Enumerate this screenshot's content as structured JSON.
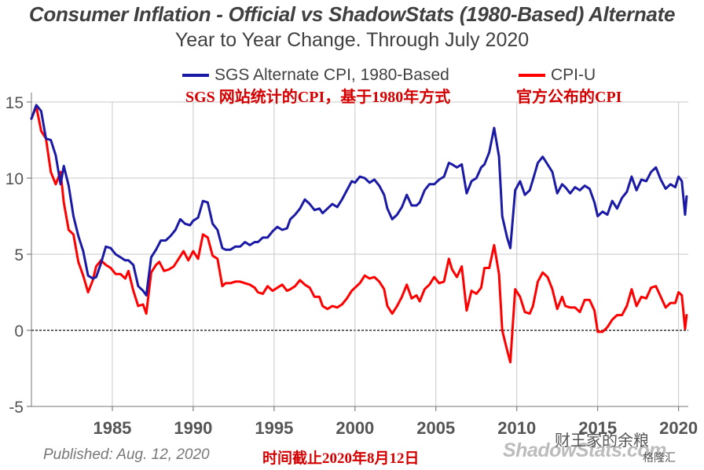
{
  "chart_data": {
    "type": "line",
    "title": "Consumer Inflation - Official vs ShadowStats (1980-Based) Alternate",
    "subtitle": "Year to Year Change. Through July 2020",
    "xlim": [
      1980,
      2020.6
    ],
    "ylim": [
      -5,
      15
    ],
    "y_ticks": [
      -5,
      0,
      5,
      10,
      15
    ],
    "y_tick_labels": [
      "-5",
      "0",
      "5",
      "10",
      "15"
    ],
    "x_ticks": [
      1985,
      1990,
      1995,
      2000,
      2005,
      2010,
      2015,
      2020
    ],
    "x_tick_labels": [
      "1985",
      "1990",
      "1995",
      "2000",
      "2005",
      "2010",
      "2015",
      "2020"
    ],
    "grid": true,
    "legend_position": "top",
    "series": [
      {
        "name": "SGS Alternate CPI, 1980-Based",
        "color": "#1a1aa6",
        "points": [
          [
            1980.0,
            13.9
          ],
          [
            1980.3,
            14.8
          ],
          [
            1980.6,
            14.4
          ],
          [
            1980.9,
            12.6
          ],
          [
            1981.2,
            12.5
          ],
          [
            1981.5,
            11.5
          ],
          [
            1981.8,
            9.6
          ],
          [
            1982.0,
            10.8
          ],
          [
            1982.3,
            9.5
          ],
          [
            1982.6,
            7.5
          ],
          [
            1982.9,
            6.2
          ],
          [
            1983.2,
            5.2
          ],
          [
            1983.5,
            3.6
          ],
          [
            1983.8,
            3.4
          ],
          [
            1984.0,
            3.5
          ],
          [
            1984.3,
            4.4
          ],
          [
            1984.6,
            5.5
          ],
          [
            1984.9,
            5.4
          ],
          [
            1985.2,
            5.0
          ],
          [
            1985.5,
            4.8
          ],
          [
            1985.8,
            4.6
          ],
          [
            1986.0,
            4.6
          ],
          [
            1986.3,
            4.3
          ],
          [
            1986.6,
            2.9
          ],
          [
            1986.9,
            2.6
          ],
          [
            1987.1,
            2.3
          ],
          [
            1987.4,
            4.8
          ],
          [
            1987.7,
            5.3
          ],
          [
            1988.0,
            5.9
          ],
          [
            1988.3,
            5.9
          ],
          [
            1988.6,
            6.2
          ],
          [
            1988.9,
            6.6
          ],
          [
            1989.2,
            7.3
          ],
          [
            1989.5,
            7.0
          ],
          [
            1989.8,
            6.9
          ],
          [
            1990.0,
            7.2
          ],
          [
            1990.3,
            7.4
          ],
          [
            1990.6,
            8.5
          ],
          [
            1990.9,
            8.4
          ],
          [
            1991.2,
            7.0
          ],
          [
            1991.5,
            6.6
          ],
          [
            1991.8,
            5.4
          ],
          [
            1992.0,
            5.3
          ],
          [
            1992.3,
            5.3
          ],
          [
            1992.6,
            5.5
          ],
          [
            1992.9,
            5.5
          ],
          [
            1993.2,
            5.8
          ],
          [
            1993.5,
            5.6
          ],
          [
            1993.8,
            5.8
          ],
          [
            1994.0,
            5.8
          ],
          [
            1994.3,
            6.1
          ],
          [
            1994.6,
            6.1
          ],
          [
            1994.9,
            6.5
          ],
          [
            1995.2,
            6.8
          ],
          [
            1995.5,
            6.6
          ],
          [
            1995.8,
            6.7
          ],
          [
            1996.0,
            7.3
          ],
          [
            1996.3,
            7.6
          ],
          [
            1996.6,
            8.0
          ],
          [
            1996.9,
            8.6
          ],
          [
            1997.2,
            8.3
          ],
          [
            1997.5,
            7.9
          ],
          [
            1997.8,
            8.0
          ],
          [
            1998.0,
            7.7
          ],
          [
            1998.3,
            8.0
          ],
          [
            1998.6,
            8.3
          ],
          [
            1998.9,
            8.1
          ],
          [
            1999.2,
            8.6
          ],
          [
            1999.5,
            9.2
          ],
          [
            1999.8,
            9.8
          ],
          [
            2000.0,
            9.7
          ],
          [
            2000.3,
            10.1
          ],
          [
            2000.6,
            10.0
          ],
          [
            2000.9,
            9.7
          ],
          [
            2001.2,
            9.9
          ],
          [
            2001.5,
            9.5
          ],
          [
            2001.8,
            8.9
          ],
          [
            2002.0,
            8.0
          ],
          [
            2002.3,
            7.3
          ],
          [
            2002.6,
            7.6
          ],
          [
            2002.9,
            8.1
          ],
          [
            2003.2,
            8.9
          ],
          [
            2003.5,
            8.2
          ],
          [
            2003.8,
            8.2
          ],
          [
            2004.0,
            8.4
          ],
          [
            2004.3,
            9.2
          ],
          [
            2004.6,
            9.6
          ],
          [
            2004.9,
            9.6
          ],
          [
            2005.2,
            9.9
          ],
          [
            2005.5,
            10.1
          ],
          [
            2005.8,
            11.0
          ],
          [
            2006.0,
            10.9
          ],
          [
            2006.3,
            10.7
          ],
          [
            2006.6,
            10.9
          ],
          [
            2006.9,
            9.0
          ],
          [
            2007.2,
            9.8
          ],
          [
            2007.5,
            10.0
          ],
          [
            2007.8,
            10.7
          ],
          [
            2008.0,
            10.9
          ],
          [
            2008.3,
            11.7
          ],
          [
            2008.6,
            13.3
          ],
          [
            2008.9,
            11.4
          ],
          [
            2009.1,
            7.5
          ],
          [
            2009.4,
            6.1
          ],
          [
            2009.6,
            5.4
          ],
          [
            2009.9,
            9.2
          ],
          [
            2010.2,
            9.8
          ],
          [
            2010.5,
            8.9
          ],
          [
            2010.8,
            9.2
          ],
          [
            2011.0,
            9.9
          ],
          [
            2011.3,
            11.0
          ],
          [
            2011.6,
            11.4
          ],
          [
            2011.9,
            10.9
          ],
          [
            2012.2,
            10.4
          ],
          [
            2012.5,
            9.0
          ],
          [
            2012.8,
            9.6
          ],
          [
            2013.0,
            9.4
          ],
          [
            2013.3,
            9.0
          ],
          [
            2013.6,
            9.4
          ],
          [
            2013.9,
            9.2
          ],
          [
            2014.2,
            9.5
          ],
          [
            2014.5,
            9.3
          ],
          [
            2014.8,
            8.4
          ],
          [
            2015.0,
            7.5
          ],
          [
            2015.3,
            7.8
          ],
          [
            2015.6,
            7.6
          ],
          [
            2015.9,
            8.5
          ],
          [
            2016.2,
            8.0
          ],
          [
            2016.5,
            8.7
          ],
          [
            2016.8,
            9.1
          ],
          [
            2017.1,
            10.1
          ],
          [
            2017.4,
            9.2
          ],
          [
            2017.7,
            9.9
          ],
          [
            2018.0,
            9.8
          ],
          [
            2018.3,
            10.4
          ],
          [
            2018.6,
            10.7
          ],
          [
            2018.9,
            9.9
          ],
          [
            2019.2,
            9.3
          ],
          [
            2019.5,
            9.6
          ],
          [
            2019.8,
            9.4
          ],
          [
            2020.0,
            10.1
          ],
          [
            2020.2,
            9.8
          ],
          [
            2020.4,
            7.6
          ],
          [
            2020.5,
            8.8
          ]
        ]
      },
      {
        "name": "CPI-U",
        "color": "#ff0000",
        "points": [
          [
            1980.0,
            13.9
          ],
          [
            1980.3,
            14.7
          ],
          [
            1980.6,
            13.1
          ],
          [
            1980.9,
            12.6
          ],
          [
            1981.2,
            10.4
          ],
          [
            1981.5,
            9.6
          ],
          [
            1981.8,
            10.4
          ],
          [
            1982.0,
            8.4
          ],
          [
            1982.3,
            6.6
          ],
          [
            1982.6,
            6.3
          ],
          [
            1982.9,
            4.5
          ],
          [
            1983.2,
            3.6
          ],
          [
            1983.5,
            2.5
          ],
          [
            1983.8,
            3.3
          ],
          [
            1984.0,
            4.2
          ],
          [
            1984.3,
            4.6
          ],
          [
            1984.6,
            4.3
          ],
          [
            1984.9,
            4.1
          ],
          [
            1985.2,
            3.7
          ],
          [
            1985.5,
            3.7
          ],
          [
            1985.8,
            3.4
          ],
          [
            1986.0,
            3.9
          ],
          [
            1986.3,
            2.6
          ],
          [
            1986.6,
            1.6
          ],
          [
            1986.9,
            1.7
          ],
          [
            1987.1,
            1.1
          ],
          [
            1987.4,
            3.8
          ],
          [
            1987.7,
            4.3
          ],
          [
            1987.9,
            4.5
          ],
          [
            1988.2,
            3.9
          ],
          [
            1988.5,
            4.0
          ],
          [
            1988.8,
            4.2
          ],
          [
            1989.1,
            4.7
          ],
          [
            1989.4,
            5.2
          ],
          [
            1989.7,
            4.6
          ],
          [
            1990.0,
            5.2
          ],
          [
            1990.3,
            4.7
          ],
          [
            1990.6,
            6.3
          ],
          [
            1990.9,
            6.1
          ],
          [
            1991.2,
            4.9
          ],
          [
            1991.5,
            4.7
          ],
          [
            1991.8,
            2.9
          ],
          [
            1992.0,
            3.1
          ],
          [
            1992.3,
            3.1
          ],
          [
            1992.6,
            3.2
          ],
          [
            1992.9,
            3.2
          ],
          [
            1993.2,
            3.1
          ],
          [
            1993.5,
            3.0
          ],
          [
            1993.8,
            2.8
          ],
          [
            1994.0,
            2.5
          ],
          [
            1994.3,
            2.4
          ],
          [
            1994.6,
            2.9
          ],
          [
            1994.9,
            2.6
          ],
          [
            1995.2,
            2.8
          ],
          [
            1995.5,
            3.0
          ],
          [
            1995.8,
            2.6
          ],
          [
            1996.0,
            2.7
          ],
          [
            1996.3,
            2.9
          ],
          [
            1996.6,
            3.3
          ],
          [
            1996.9,
            3.0
          ],
          [
            1997.2,
            2.8
          ],
          [
            1997.5,
            2.2
          ],
          [
            1997.8,
            2.2
          ],
          [
            1998.0,
            1.6
          ],
          [
            1998.3,
            1.4
          ],
          [
            1998.6,
            1.6
          ],
          [
            1998.9,
            1.5
          ],
          [
            1999.2,
            1.7
          ],
          [
            1999.5,
            2.1
          ],
          [
            1999.8,
            2.6
          ],
          [
            2000.0,
            2.8
          ],
          [
            2000.3,
            3.1
          ],
          [
            2000.6,
            3.6
          ],
          [
            2000.9,
            3.4
          ],
          [
            2001.2,
            3.5
          ],
          [
            2001.5,
            3.2
          ],
          [
            2001.8,
            2.7
          ],
          [
            2002.0,
            1.6
          ],
          [
            2002.3,
            1.1
          ],
          [
            2002.6,
            1.6
          ],
          [
            2002.9,
            2.2
          ],
          [
            2003.2,
            3.0
          ],
          [
            2003.5,
            2.1
          ],
          [
            2003.8,
            2.3
          ],
          [
            2004.0,
            1.9
          ],
          [
            2004.3,
            2.7
          ],
          [
            2004.6,
            3.0
          ],
          [
            2004.9,
            3.5
          ],
          [
            2005.2,
            3.1
          ],
          [
            2005.5,
            3.2
          ],
          [
            2005.8,
            4.7
          ],
          [
            2006.0,
            4.0
          ],
          [
            2006.3,
            3.5
          ],
          [
            2006.6,
            4.2
          ],
          [
            2006.9,
            1.3
          ],
          [
            2007.2,
            2.6
          ],
          [
            2007.5,
            2.4
          ],
          [
            2007.8,
            2.8
          ],
          [
            2008.0,
            4.1
          ],
          [
            2008.3,
            4.1
          ],
          [
            2008.6,
            5.6
          ],
          [
            2008.9,
            3.7
          ],
          [
            2009.1,
            0.0
          ],
          [
            2009.4,
            -1.3
          ],
          [
            2009.6,
            -2.1
          ],
          [
            2009.9,
            2.7
          ],
          [
            2010.2,
            2.2
          ],
          [
            2010.5,
            1.2
          ],
          [
            2010.8,
            1.1
          ],
          [
            2011.0,
            1.6
          ],
          [
            2011.3,
            3.2
          ],
          [
            2011.6,
            3.8
          ],
          [
            2011.9,
            3.5
          ],
          [
            2012.2,
            2.7
          ],
          [
            2012.5,
            1.4
          ],
          [
            2012.8,
            2.2
          ],
          [
            2013.0,
            1.6
          ],
          [
            2013.3,
            1.5
          ],
          [
            2013.6,
            1.5
          ],
          [
            2013.9,
            1.2
          ],
          [
            2014.2,
            2.0
          ],
          [
            2014.5,
            2.0
          ],
          [
            2014.8,
            1.3
          ],
          [
            2015.0,
            -0.1
          ],
          [
            2015.3,
            -0.1
          ],
          [
            2015.6,
            0.2
          ],
          [
            2015.9,
            0.7
          ],
          [
            2016.2,
            1.0
          ],
          [
            2016.5,
            1.0
          ],
          [
            2016.8,
            1.6
          ],
          [
            2017.1,
            2.7
          ],
          [
            2017.4,
            1.6
          ],
          [
            2017.7,
            2.2
          ],
          [
            2018.0,
            2.1
          ],
          [
            2018.3,
            2.8
          ],
          [
            2018.6,
            2.9
          ],
          [
            2018.9,
            2.2
          ],
          [
            2019.2,
            1.5
          ],
          [
            2019.5,
            1.8
          ],
          [
            2019.8,
            1.8
          ],
          [
            2020.0,
            2.5
          ],
          [
            2020.2,
            2.3
          ],
          [
            2020.4,
            0.1
          ],
          [
            2020.5,
            1.0
          ]
        ]
      }
    ]
  },
  "annotations": {
    "sgs_note": "SGS 网站统计的CPI，基于1980年方式",
    "cpiu_note": "官方公布的CPI",
    "date_note": "时间截止2020年8月12日"
  },
  "footer": {
    "published": "Published: Aug. 12, 2020",
    "watermark": "ShadowStats.com",
    "stamp_main": "财王家的余粮",
    "stamp_sub": "格隆汇"
  }
}
